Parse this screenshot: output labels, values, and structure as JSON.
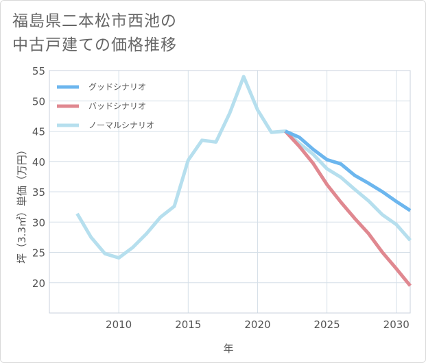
{
  "title": {
    "line1": "福島県二本松市西池の",
    "line2": "中古戸建ての価格推移"
  },
  "colors": {
    "good": "#6cb6ee",
    "bad": "#e08890",
    "normal": "#b6dfee",
    "grid": "#d5dfe8",
    "text": "#555555"
  },
  "chart_data": {
    "type": "line",
    "title": "福島県二本松市西池の中古戸建ての価格推移",
    "xlabel": "年",
    "ylabel": "坪（3.3㎡）単価（万円）",
    "xlim": [
      2005,
      2031
    ],
    "ylim": [
      15,
      55
    ],
    "x_ticks": [
      2010,
      2015,
      2020,
      2025,
      2030
    ],
    "y_ticks": [
      20,
      25,
      30,
      35,
      40,
      45,
      50,
      55
    ],
    "legend_position": "top-left",
    "series": [
      {
        "name": "グッドシナリオ",
        "color_key": "good",
        "x": [
          2022,
          2023,
          2024,
          2025,
          2026,
          2027,
          2028,
          2029,
          2030,
          2031
        ],
        "values": [
          45.0,
          44.0,
          42.0,
          40.3,
          39.6,
          37.7,
          36.4,
          35.0,
          33.4,
          31.9
        ]
      },
      {
        "name": "バッドシナリオ",
        "color_key": "bad",
        "x": [
          2022,
          2023,
          2024,
          2025,
          2026,
          2027,
          2028,
          2029,
          2030,
          2031
        ],
        "values": [
          45.0,
          42.5,
          39.7,
          36.2,
          33.3,
          30.6,
          28.1,
          25.0,
          22.3,
          19.5
        ]
      },
      {
        "name": "ノーマルシナリオ",
        "color_key": "normal",
        "x": [
          2007,
          2008,
          2009,
          2010,
          2011,
          2012,
          2013,
          2014,
          2015,
          2016,
          2017,
          2018,
          2019,
          2020,
          2021,
          2022,
          2023,
          2024,
          2025,
          2026,
          2027,
          2028,
          2029,
          2030,
          2031
        ],
        "values": [
          31.4,
          27.5,
          24.8,
          24.1,
          25.8,
          28.1,
          30.8,
          32.6,
          40.2,
          43.5,
          43.2,
          48.0,
          54.0,
          48.5,
          44.8,
          45.0,
          43.0,
          41.2,
          38.8,
          37.4,
          35.4,
          33.5,
          31.2,
          29.6,
          27.0
        ]
      }
    ]
  }
}
